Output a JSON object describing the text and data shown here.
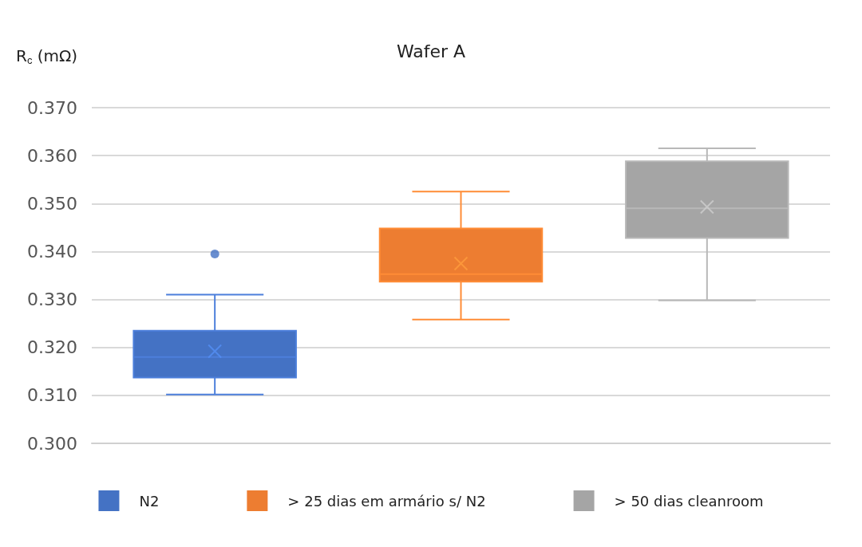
{
  "chart_data": {
    "type": "box",
    "title": "Wafer A",
    "ylabel": "R$_{c}$ (mΩ)",
    "categories": [
      null,
      null,
      null
    ],
    "ylim": [
      0.3,
      0.37
    ],
    "yticks": [
      {
        "value": 0.3,
        "label": "0.300"
      },
      {
        "value": 0.31,
        "label": "0.310"
      },
      {
        "value": 0.32,
        "label": "0.320"
      },
      {
        "value": 0.33,
        "label": "0.330"
      },
      {
        "value": 0.34,
        "label": "0.340"
      },
      {
        "value": 0.35,
        "label": "0.350"
      },
      {
        "value": 0.36,
        "label": "0.360"
      },
      {
        "value": 0.37,
        "label": "0.370"
      }
    ],
    "grid": "y",
    "legend": "bottom",
    "series": [
      {
        "name": "N2",
        "color": "#4472c4",
        "boxes": [
          {
            "low": 0.3102,
            "q1": 0.3137,
            "median": 0.318,
            "q3": 0.3235,
            "high": 0.331,
            "mean": 0.3192,
            "outliers": [
              0.3395
            ]
          },
          null,
          null
        ]
      },
      {
        "name": "> 25 dias em armário s/ N2",
        "color": "#ed7d31",
        "boxes": [
          null,
          {
            "low": 0.3258,
            "q1": 0.3337,
            "median": 0.3353,
            "q3": 0.3448,
            "high": 0.3525,
            "mean": 0.3375
          },
          null
        ]
      },
      {
        "name": "> 50 dias cleanroom",
        "color": "#a5a5a5",
        "boxes": [
          null,
          null,
          {
            "low": 0.3298,
            "q1": 0.3428,
            "median": 0.349,
            "q3": 0.3588,
            "high": 0.3615,
            "mean": 0.3493
          }
        ]
      }
    ]
  }
}
